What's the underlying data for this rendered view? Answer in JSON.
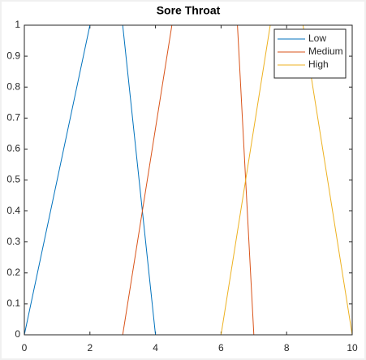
{
  "chart_data": {
    "type": "line",
    "title": "Sore Throat",
    "series": [
      {
        "name": "Low",
        "color": "#0072bd",
        "x": [
          0,
          2,
          3,
          4,
          10
        ],
        "values": [
          0,
          1,
          1,
          0,
          0
        ]
      },
      {
        "name": "Medium",
        "color": "#d95319",
        "x": [
          0,
          3,
          4.5,
          6.5,
          7,
          10
        ],
        "values": [
          0,
          0,
          1,
          1,
          0,
          0
        ]
      },
      {
        "name": "High",
        "color": "#edb120",
        "x": [
          0,
          6,
          7.5,
          8.5,
          10
        ],
        "values": [
          0,
          0,
          1,
          1,
          0
        ]
      }
    ],
    "xlim": [
      0,
      10
    ],
    "xticks": [
      0,
      2,
      4,
      6,
      8,
      10
    ],
    "ylim": [
      0,
      1
    ],
    "yticks": [
      0,
      0.1,
      0.2,
      0.3,
      0.4,
      0.5,
      0.6,
      0.7,
      0.8,
      0.9,
      1
    ],
    "grid": false,
    "legend": "northeast"
  }
}
